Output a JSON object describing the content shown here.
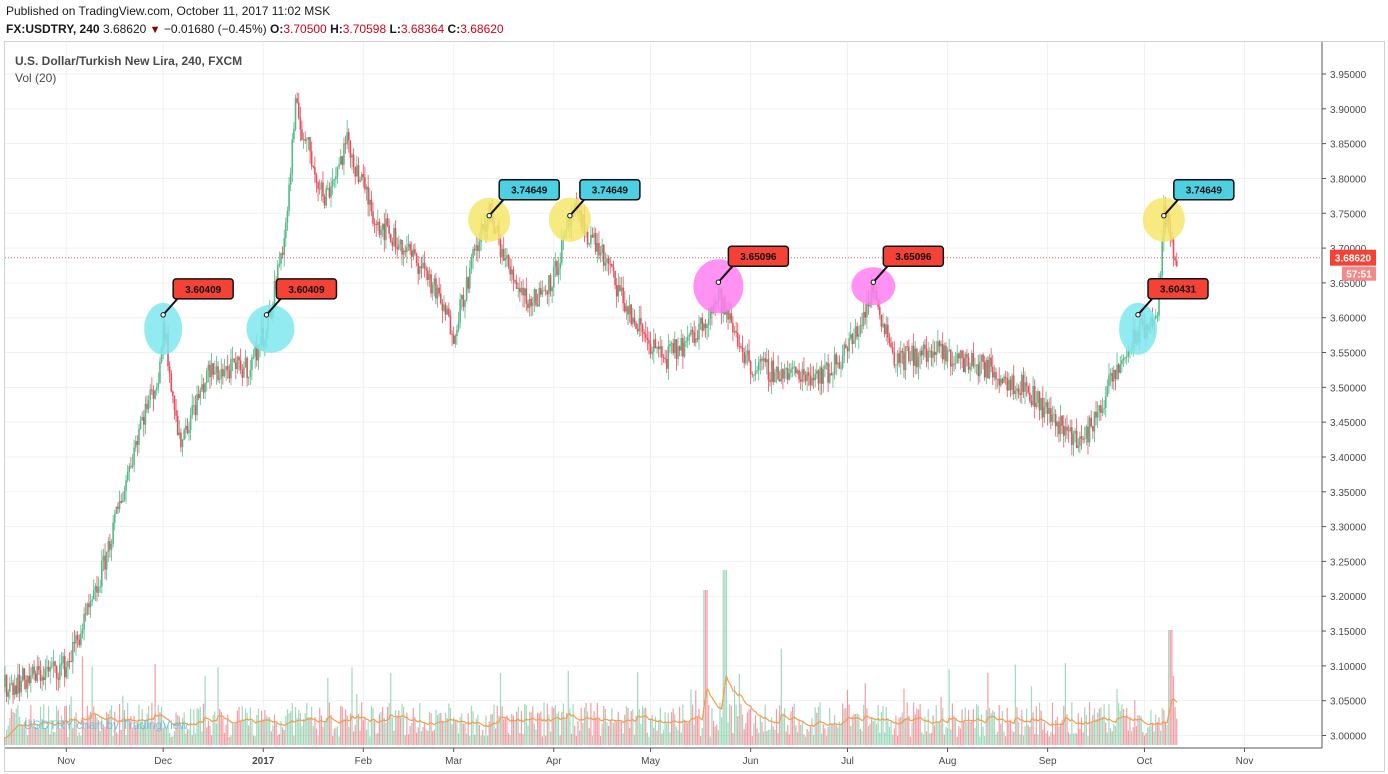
{
  "header": {
    "published": "Published on TradingView.com, October 11, 2017 11:02 MSK",
    "symbol": "FX:USDTRY, 240",
    "last": "3.68620",
    "change": "−0.01680 (−0.45%)",
    "o_label": "O:",
    "o": "3.70500",
    "h_label": "H:",
    "h": "3.70598",
    "l_label": "L:",
    "l": "3.68364",
    "c_label": "C:",
    "c": "3.68620"
  },
  "legend": {
    "title": "U.S. Dollar/Turkish New Lira, 240, FXCM",
    "volume": "Vol (20)"
  },
  "watermark": "USDTRY chart by TradingView",
  "price_tag": {
    "value": "3.68620",
    "timer": "57:51"
  },
  "colors": {
    "up": "#53b987",
    "down": "#eb4d5c",
    "volume_ma": "#f39c4b",
    "price_line": "#e06060",
    "marker_red": "#f44336",
    "marker_cyan": "#4dd0e1",
    "yellow_circle": "#f5e66b",
    "cyan_circle": "#7fe8ee",
    "magenta_circle": "#ff7ff0"
  },
  "annotations": [
    {
      "label": "3.60409",
      "color": "red",
      "circle": "cyan",
      "x": "2016-12-01",
      "y": 3.60409
    },
    {
      "label": "3.60409",
      "color": "red",
      "circle": "cyan",
      "x": "2017-01-02",
      "y": 3.60409
    },
    {
      "label": "3.74649",
      "color": "cyan",
      "circle": "yellow",
      "x": "2017-03-12",
      "y": 3.74649
    },
    {
      "label": "3.74649",
      "color": "cyan",
      "circle": "yellow",
      "x": "2017-04-06",
      "y": 3.74649
    },
    {
      "label": "3.65096",
      "color": "red",
      "circle": "magenta",
      "x": "2017-05-22",
      "y": 3.65096
    },
    {
      "label": "3.65096",
      "color": "red",
      "circle": "magenta",
      "x": "2017-07-09",
      "y": 3.65096
    },
    {
      "label": "3.60431",
      "color": "red",
      "circle": "cyan",
      "x": "2017-09-29",
      "y": 3.60431
    },
    {
      "label": "3.74649",
      "color": "cyan",
      "circle": "yellow",
      "x": "2017-10-07",
      "y": 3.74649
    }
  ],
  "chart_data": {
    "type": "candlestick",
    "title": "U.S. Dollar/Turkish New Lira, 240, FXCM",
    "x_ticks": [
      "Nov",
      "Dec",
      "2017",
      "Feb",
      "Mar",
      "Apr",
      "May",
      "Jun",
      "Jul",
      "Aug",
      "Sep",
      "Oct",
      "Nov"
    ],
    "y_ticks": [
      "3.95000",
      "3.90000",
      "3.85000",
      "3.80000",
      "3.75000",
      "3.70000",
      "3.65000",
      "3.60000",
      "3.55000",
      "3.50000",
      "3.45000",
      "3.40000",
      "3.35000",
      "3.30000",
      "3.25000",
      "3.20000",
      "3.15000",
      "3.10000",
      "3.05000",
      "3.00000"
    ],
    "ylim": [
      3.0,
      3.95
    ],
    "x_range": [
      "2016-10-13",
      "2017-11-25"
    ],
    "price_path": [
      {
        "date": "2016-10-13",
        "close": 3.07
      },
      {
        "date": "2016-10-25",
        "close": 3.09
      },
      {
        "date": "2016-11-01",
        "close": 3.1
      },
      {
        "date": "2016-11-10",
        "close": 3.2
      },
      {
        "date": "2016-11-18",
        "close": 3.34
      },
      {
        "date": "2016-11-24",
        "close": 3.45
      },
      {
        "date": "2016-11-30",
        "close": 3.52
      },
      {
        "date": "2016-12-01",
        "close": 3.6
      },
      {
        "date": "2016-12-06",
        "close": 3.42
      },
      {
        "date": "2016-12-15",
        "close": 3.52
      },
      {
        "date": "2016-12-28",
        "close": 3.53
      },
      {
        "date": "2017-01-03",
        "close": 3.6
      },
      {
        "date": "2017-01-08",
        "close": 3.73
      },
      {
        "date": "2017-01-11",
        "close": 3.9
      },
      {
        "date": "2017-01-20",
        "close": 3.77
      },
      {
        "date": "2017-01-27",
        "close": 3.85
      },
      {
        "date": "2017-02-05",
        "close": 3.74
      },
      {
        "date": "2017-02-20",
        "close": 3.67
      },
      {
        "date": "2017-03-01",
        "close": 3.58
      },
      {
        "date": "2017-03-08",
        "close": 3.7
      },
      {
        "date": "2017-03-12",
        "close": 3.75
      },
      {
        "date": "2017-03-18",
        "close": 3.67
      },
      {
        "date": "2017-03-25",
        "close": 3.62
      },
      {
        "date": "2017-04-01",
        "close": 3.66
      },
      {
        "date": "2017-04-07",
        "close": 3.75
      },
      {
        "date": "2017-04-15",
        "close": 3.7
      },
      {
        "date": "2017-04-25",
        "close": 3.6
      },
      {
        "date": "2017-05-05",
        "close": 3.54
      },
      {
        "date": "2017-05-14",
        "close": 3.57
      },
      {
        "date": "2017-05-22",
        "close": 3.63
      },
      {
        "date": "2017-06-01",
        "close": 3.53
      },
      {
        "date": "2017-06-12",
        "close": 3.52
      },
      {
        "date": "2017-06-25",
        "close": 3.52
      },
      {
        "date": "2017-07-03",
        "close": 3.57
      },
      {
        "date": "2017-07-09",
        "close": 3.64
      },
      {
        "date": "2017-07-16",
        "close": 3.54
      },
      {
        "date": "2017-07-28",
        "close": 3.55
      },
      {
        "date": "2017-08-12",
        "close": 3.53
      },
      {
        "date": "2017-08-25",
        "close": 3.5
      },
      {
        "date": "2017-09-04",
        "close": 3.45
      },
      {
        "date": "2017-09-12",
        "close": 3.42
      },
      {
        "date": "2017-09-20",
        "close": 3.5
      },
      {
        "date": "2017-09-29",
        "close": 3.58
      },
      {
        "date": "2017-10-05",
        "close": 3.6
      },
      {
        "date": "2017-10-07",
        "close": 3.75
      },
      {
        "date": "2017-10-11",
        "close": 3.6862
      }
    ],
    "last_price": 3.6862,
    "volume_series": "Vol (20)"
  }
}
